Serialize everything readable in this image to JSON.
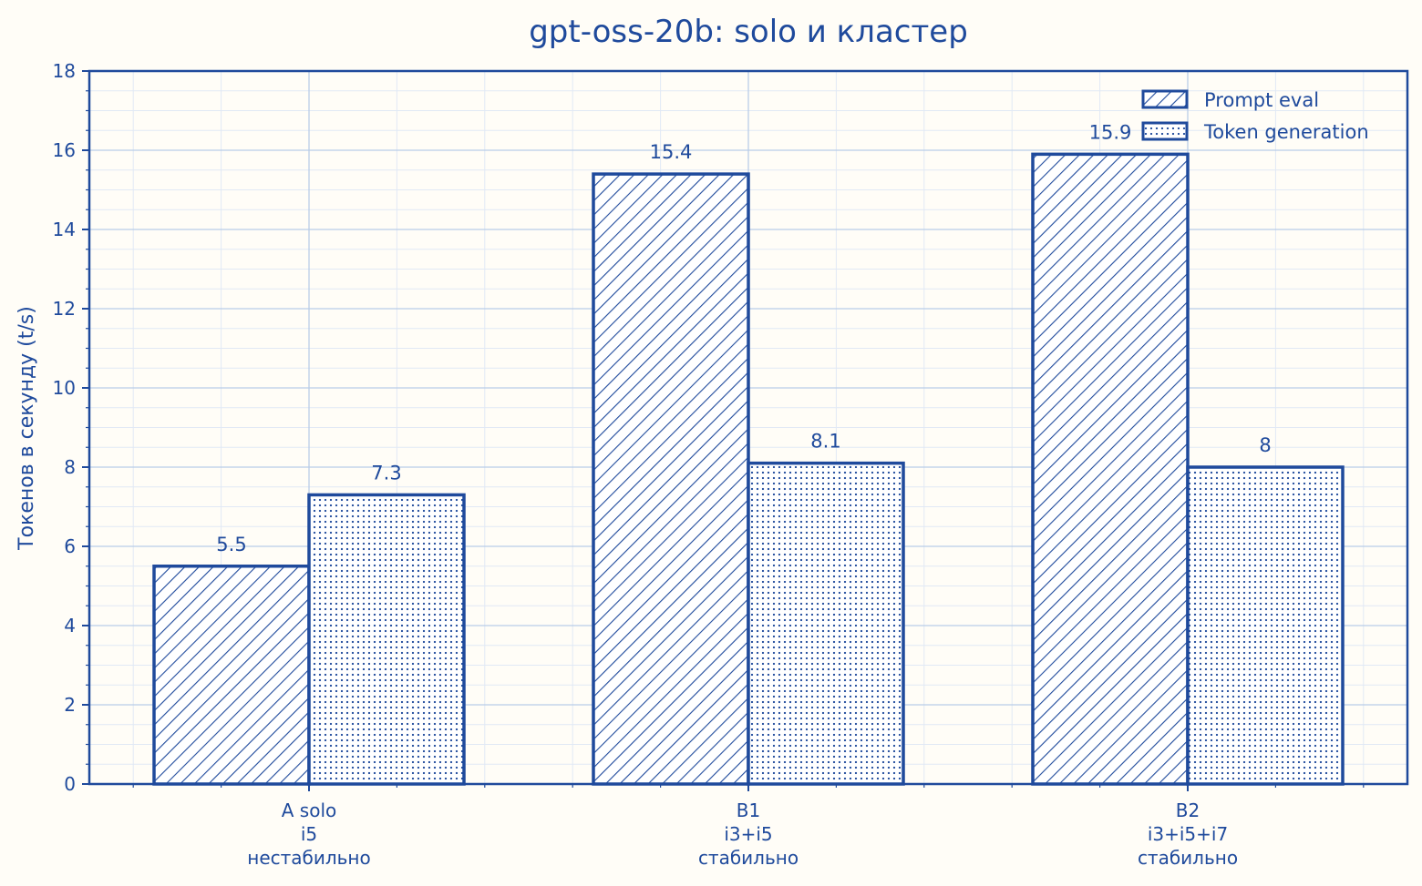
{
  "chart_data": {
    "type": "bar",
    "title": "gpt-oss-20b: solo и кластер",
    "xlabel": "",
    "ylabel": "Токенов в секунду (t/s)",
    "ylim": [
      0,
      18
    ],
    "yticks": [
      0,
      2,
      4,
      6,
      8,
      10,
      12,
      14,
      16,
      18
    ],
    "grid": true,
    "legend_position": "top-right",
    "categories": [
      [
        "A solo",
        "i5",
        "нестабильно"
      ],
      [
        "B1",
        "i3+i5",
        "стабильно"
      ],
      [
        "B2",
        "i3+i5+i7",
        "стабильно"
      ]
    ],
    "series": [
      {
        "name": "Prompt eval",
        "values": [
          5.5,
          15.4,
          15.9
        ],
        "labels": [
          "5.5",
          "15.4",
          "15.9"
        ],
        "pattern": "hatch"
      },
      {
        "name": "Token generation",
        "values": [
          7.3,
          8.1,
          8
        ],
        "labels": [
          "7.3",
          "8.1",
          "8"
        ],
        "pattern": "dots"
      }
    ]
  },
  "colors": {
    "primary": "#1f4a9c",
    "background": "#fffdf7",
    "grid_major": "#b9cde8",
    "grid_minor": "#e1e9f5"
  }
}
